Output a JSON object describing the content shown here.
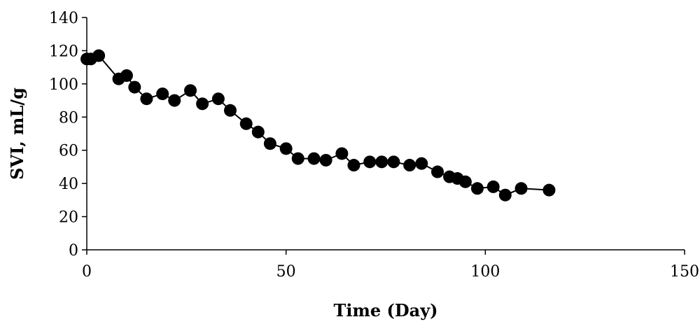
{
  "chart_data": {
    "type": "scatter",
    "xlabel": "Time (Day)",
    "ylabel": "SVI, mL/g",
    "xlim": [
      0,
      150
    ],
    "ylim": [
      0,
      140
    ],
    "xticks": [
      "0",
      "50",
      "100",
      "150"
    ],
    "yticks": [
      "0",
      "20",
      "40",
      "60",
      "80",
      "100",
      "120",
      "140"
    ],
    "grid": false,
    "legend": "none",
    "series": [
      {
        "x": [
          0,
          1,
          3,
          8,
          10,
          12,
          15,
          19,
          22,
          26,
          29,
          33,
          36,
          40,
          43,
          46,
          50,
          53,
          57,
          60,
          64,
          67,
          71,
          74,
          77,
          81,
          84,
          88,
          91,
          93,
          95,
          98,
          102,
          105,
          109,
          116
        ],
        "y": [
          115,
          115,
          117,
          103,
          105,
          98,
          91,
          94,
          90,
          96,
          88,
          91,
          84,
          76,
          71,
          64,
          61,
          55,
          55,
          54,
          58,
          51,
          53,
          53,
          53,
          51,
          52,
          47,
          44,
          43,
          41,
          37,
          38,
          33,
          37,
          36
        ]
      }
    ]
  }
}
